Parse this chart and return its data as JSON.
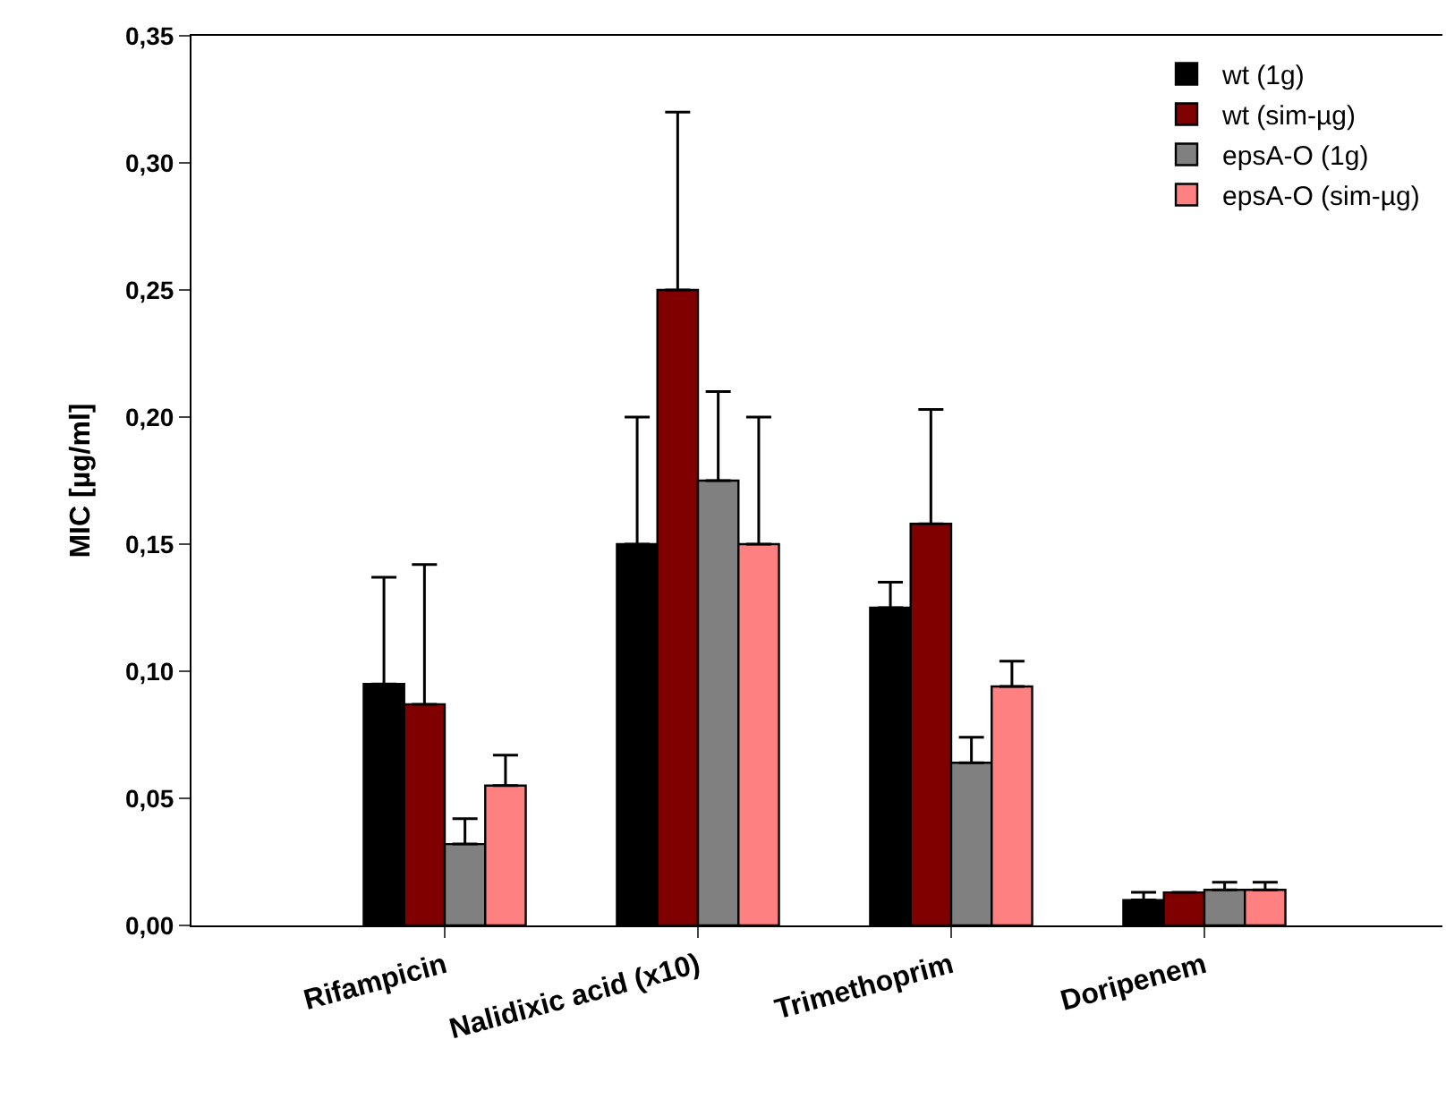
{
  "chart_data": {
    "type": "bar",
    "ylabel": "MIC [µg/ml]",
    "categories": [
      "Rifampicin",
      "Nalidixic acid (x10)",
      "Trimethoprim",
      "Doripenem"
    ],
    "series": [
      {
        "name": "wt (1g)",
        "color": "#000000",
        "values": [
          0.095,
          0.15,
          0.125,
          0.01
        ],
        "errors": [
          [
            0.095,
            0.137
          ],
          [
            0.15,
            0.2
          ],
          [
            0.125,
            0.135
          ],
          [
            0.01,
            0.013
          ]
        ]
      },
      {
        "name": "wt (sim-µg)",
        "color": "#800000",
        "values": [
          0.087,
          0.25,
          0.158,
          0.013
        ],
        "errors": [
          [
            0.087,
            0.142
          ],
          [
            0.25,
            0.32
          ],
          [
            0.158,
            0.203
          ],
          null
        ]
      },
      {
        "name": "epsA-O (1g)",
        "color": "#808080",
        "values": [
          0.032,
          0.175,
          0.064,
          0.014
        ],
        "errors": [
          [
            0.032,
            0.042
          ],
          [
            0.175,
            0.21
          ],
          [
            0.064,
            0.074
          ],
          [
            0.014,
            0.017
          ]
        ]
      },
      {
        "name": "epsA-O (sim-µg)",
        "color": "#ff8080",
        "values": [
          0.055,
          0.15,
          0.094,
          0.014
        ],
        "errors": [
          [
            0.055,
            0.067
          ],
          [
            0.15,
            0.2
          ],
          [
            0.094,
            0.104
          ],
          [
            0.014,
            0.017
          ]
        ]
      }
    ],
    "ylim": [
      0,
      0.35
    ],
    "yticks": [
      {
        "value": 0,
        "label": "0,00"
      },
      {
        "value": 0.05,
        "label": "0,05"
      },
      {
        "value": 0.1,
        "label": "0,10"
      },
      {
        "value": 0.15,
        "label": "0,15"
      },
      {
        "value": 0.2,
        "label": "0,20"
      },
      {
        "value": 0.25,
        "label": "0,25"
      },
      {
        "value": 0.3,
        "label": "0,30"
      },
      {
        "value": 0.35,
        "label": "0,35"
      }
    ],
    "legend": "top right"
  }
}
